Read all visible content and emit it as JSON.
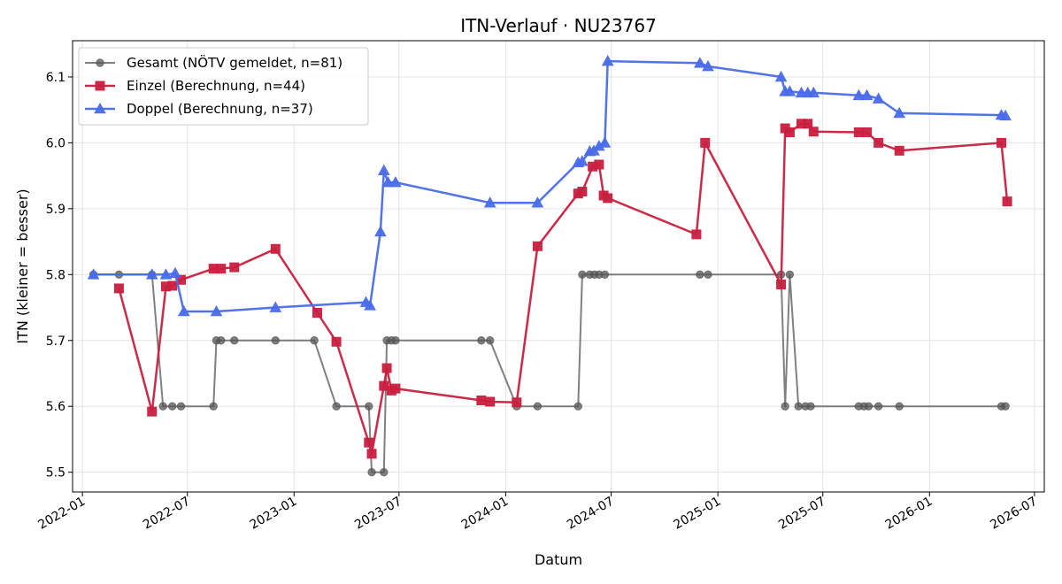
{
  "chart_data": {
    "type": "line",
    "title": "ITN-Verlauf · NU23767",
    "xlabel": "Datum",
    "ylabel": "ITN  (kleiner = besser)",
    "x_ticks": [
      "2022-01",
      "2022-07",
      "2023-01",
      "2023-07",
      "2024-01",
      "2024-07",
      "2025-01",
      "2025-07",
      "2026-01",
      "2026-07"
    ],
    "y_ticks": [
      "5.5",
      "5.6",
      "5.7",
      "5.8",
      "5.9",
      "6.0",
      "6.1"
    ],
    "ylim": [
      5.47,
      6.155
    ],
    "xlim": [
      "2021-12-15",
      "2026-07-18"
    ],
    "grid": true,
    "legend_position": "top-left",
    "series": [
      {
        "name": "Gesamt (NÖTV gemeldet, n=81)",
        "color": "#555555",
        "marker": "circle",
        "points": [
          [
            "2022-01-20",
            5.8
          ],
          [
            "2022-03-05",
            5.8
          ],
          [
            "2022-05-01",
            5.8
          ],
          [
            "2022-05-20",
            5.6
          ],
          [
            "2022-06-05",
            5.6
          ],
          [
            "2022-06-20",
            5.6
          ],
          [
            "2022-08-15",
            5.6
          ],
          [
            "2022-08-20",
            5.7
          ],
          [
            "2022-08-28",
            5.7
          ],
          [
            "2022-09-20",
            5.7
          ],
          [
            "2022-11-30",
            5.7
          ],
          [
            "2023-02-05",
            5.7
          ],
          [
            "2023-03-15",
            5.6
          ],
          [
            "2023-05-10",
            5.6
          ],
          [
            "2023-05-15",
            5.5
          ],
          [
            "2023-06-05",
            5.5
          ],
          [
            "2023-06-10",
            5.7
          ],
          [
            "2023-06-18",
            5.7
          ],
          [
            "2023-06-25",
            5.7
          ],
          [
            "2023-11-20",
            5.7
          ],
          [
            "2023-12-05",
            5.7
          ],
          [
            "2024-01-20",
            5.6
          ],
          [
            "2024-02-25",
            5.6
          ],
          [
            "2024-05-05",
            5.6
          ],
          [
            "2024-05-12",
            5.8
          ],
          [
            "2024-05-25",
            5.8
          ],
          [
            "2024-06-02",
            5.8
          ],
          [
            "2024-06-10",
            5.8
          ],
          [
            "2024-06-20",
            5.8
          ],
          [
            "2024-12-01",
            5.8
          ],
          [
            "2024-12-15",
            5.8
          ],
          [
            "2025-04-20",
            5.8
          ],
          [
            "2025-04-27",
            5.6
          ],
          [
            "2025-05-05",
            5.8
          ],
          [
            "2025-05-20",
            5.6
          ],
          [
            "2025-06-01",
            5.6
          ],
          [
            "2025-06-10",
            5.6
          ],
          [
            "2025-09-01",
            5.6
          ],
          [
            "2025-09-10",
            5.6
          ],
          [
            "2025-09-18",
            5.6
          ],
          [
            "2025-10-05",
            5.6
          ],
          [
            "2025-11-10",
            5.6
          ],
          [
            "2026-05-05",
            5.6
          ],
          [
            "2026-05-12",
            5.6
          ]
        ]
      },
      {
        "name": "Einzel (Berechnung, n=44)",
        "color": "#c8203f",
        "marker": "square",
        "points": [
          [
            "2022-03-05",
            5.779
          ],
          [
            "2022-05-01",
            5.592
          ],
          [
            "2022-05-25",
            5.782
          ],
          [
            "2022-06-05",
            5.783
          ],
          [
            "2022-06-20",
            5.792
          ],
          [
            "2022-08-15",
            5.809
          ],
          [
            "2022-08-28",
            5.809
          ],
          [
            "2022-09-20",
            5.811
          ],
          [
            "2022-11-30",
            5.839
          ],
          [
            "2023-02-10",
            5.742
          ],
          [
            "2023-03-15",
            5.698
          ],
          [
            "2023-05-10",
            5.545
          ],
          [
            "2023-05-15",
            5.528
          ],
          [
            "2023-06-05",
            5.631
          ],
          [
            "2023-06-10",
            5.658
          ],
          [
            "2023-06-18",
            5.624
          ],
          [
            "2023-06-25",
            5.627
          ],
          [
            "2023-11-20",
            5.609
          ],
          [
            "2023-12-05",
            5.607
          ],
          [
            "2024-01-20",
            5.606
          ],
          [
            "2024-02-25",
            5.843
          ],
          [
            "2024-05-05",
            5.923
          ],
          [
            "2024-05-12",
            5.926
          ],
          [
            "2024-05-30",
            5.964
          ],
          [
            "2024-06-10",
            5.967
          ],
          [
            "2024-06-18",
            5.92
          ],
          [
            "2024-06-25",
            5.916
          ],
          [
            "2024-11-25",
            5.861
          ],
          [
            "2024-12-10",
            6.0
          ],
          [
            "2025-04-20",
            5.785
          ],
          [
            "2025-04-27",
            6.022
          ],
          [
            "2025-05-05",
            6.016
          ],
          [
            "2025-05-25",
            6.029
          ],
          [
            "2025-06-05",
            6.029
          ],
          [
            "2025-06-15",
            6.017
          ],
          [
            "2025-09-01",
            6.016
          ],
          [
            "2025-09-15",
            6.016
          ],
          [
            "2025-10-05",
            6.0
          ],
          [
            "2025-11-10",
            5.988
          ],
          [
            "2026-05-05",
            6.0
          ],
          [
            "2026-05-15",
            5.911
          ]
        ]
      },
      {
        "name": "Doppel (Berechnung, n=37)",
        "color": "#4a6be8",
        "marker": "triangle",
        "points": [
          [
            "2022-01-20",
            5.8
          ],
          [
            "2022-05-01",
            5.8
          ],
          [
            "2022-05-25",
            5.8
          ],
          [
            "2022-06-10",
            5.802
          ],
          [
            "2022-06-25",
            5.744
          ],
          [
            "2022-08-20",
            5.744
          ],
          [
            "2022-11-30",
            5.75
          ],
          [
            "2023-05-05",
            5.758
          ],
          [
            "2023-05-12",
            5.753
          ],
          [
            "2023-05-30",
            5.865
          ],
          [
            "2023-06-05",
            5.958
          ],
          [
            "2023-06-12",
            5.94
          ],
          [
            "2023-06-25",
            5.94
          ],
          [
            "2023-12-05",
            5.909
          ],
          [
            "2024-02-25",
            5.909
          ],
          [
            "2024-05-05",
            5.97
          ],
          [
            "2024-05-12",
            5.972
          ],
          [
            "2024-05-25",
            5.987
          ],
          [
            "2024-06-01",
            5.988
          ],
          [
            "2024-06-10",
            5.995
          ],
          [
            "2024-06-20",
            6.0
          ],
          [
            "2024-06-25",
            6.124
          ],
          [
            "2024-12-01",
            6.121
          ],
          [
            "2024-12-15",
            6.116
          ],
          [
            "2025-04-20",
            6.1
          ],
          [
            "2025-04-27",
            6.078
          ],
          [
            "2025-05-05",
            6.078
          ],
          [
            "2025-05-25",
            6.076
          ],
          [
            "2025-06-05",
            6.076
          ],
          [
            "2025-06-15",
            6.076
          ],
          [
            "2025-09-01",
            6.072
          ],
          [
            "2025-09-15",
            6.072
          ],
          [
            "2025-10-05",
            6.067
          ],
          [
            "2025-11-10",
            6.045
          ],
          [
            "2026-05-05",
            6.042
          ],
          [
            "2026-05-12",
            6.041
          ]
        ]
      }
    ]
  }
}
